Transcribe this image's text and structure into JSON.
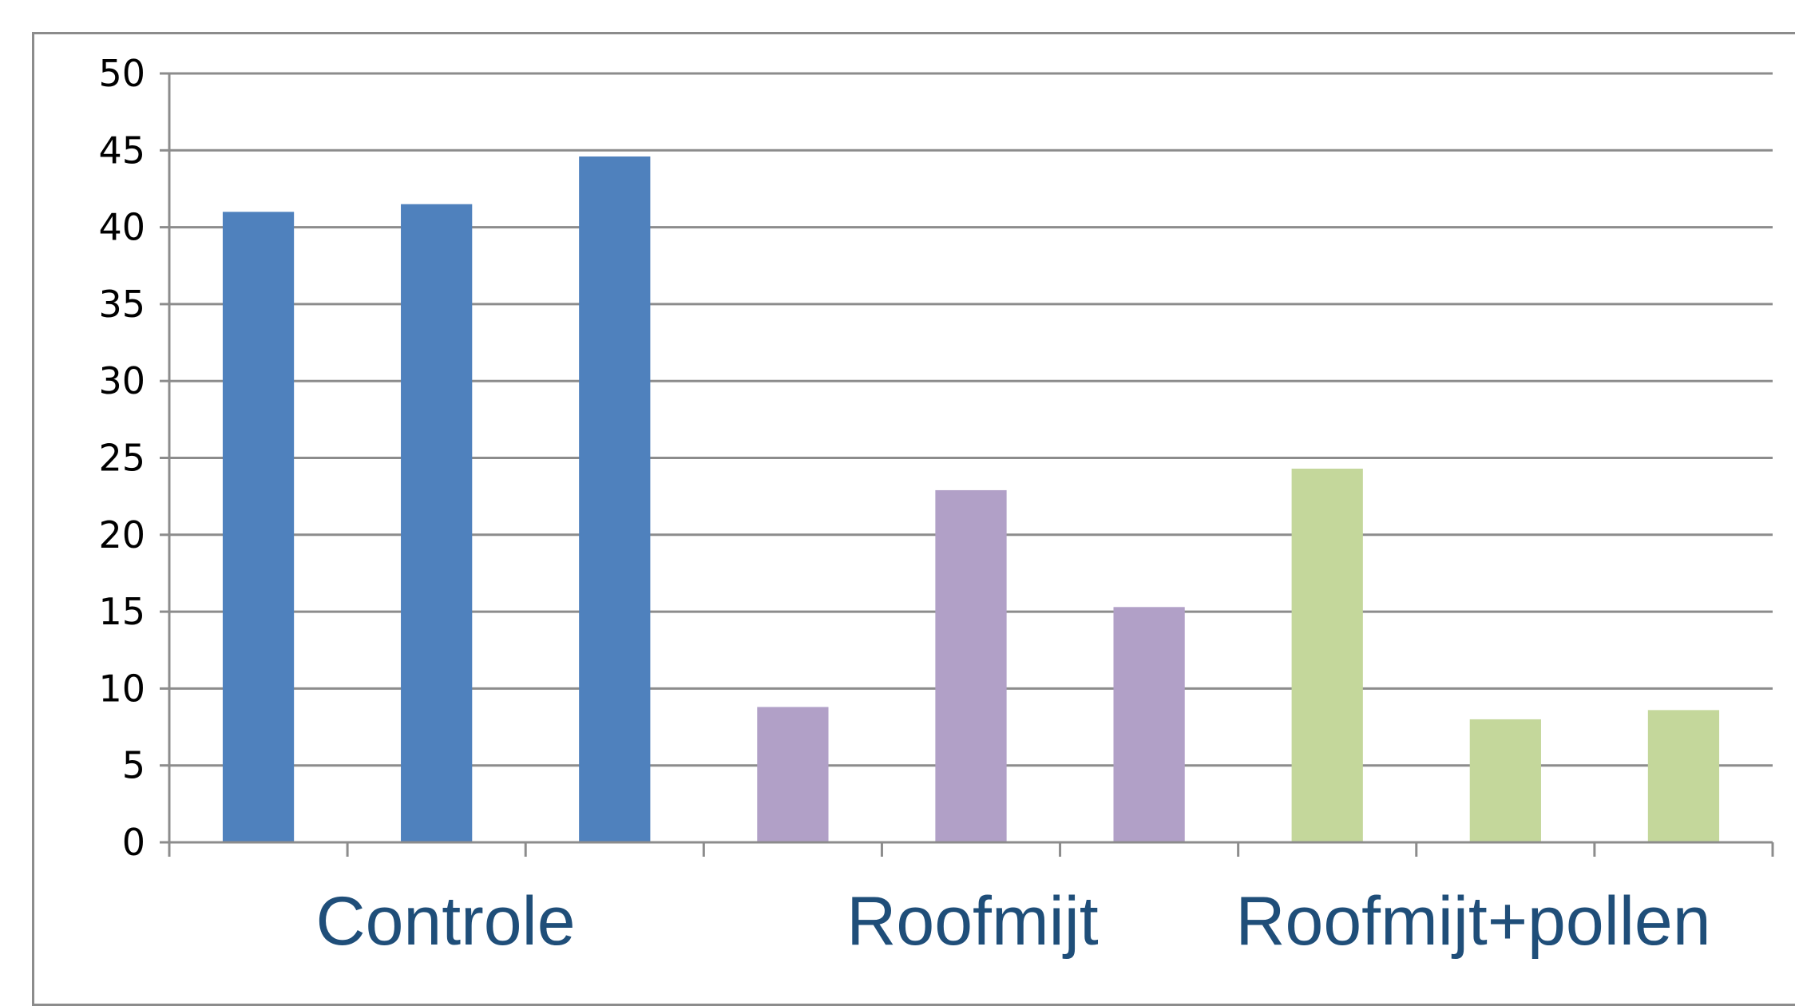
{
  "chart_data": {
    "type": "bar",
    "title": "",
    "xlabel": "",
    "ylabel": "",
    "ylim": [
      0,
      50
    ],
    "yticks": [
      0,
      5,
      10,
      15,
      20,
      25,
      30,
      35,
      40,
      45,
      50
    ],
    "grid": true,
    "legend": "none",
    "group_labels": [
      "Controle",
      "Roofmijt",
      "Roofmijt+pollen"
    ],
    "bars": [
      {
        "group": "Controle",
        "value": 41,
        "color": "#4f81bd"
      },
      {
        "group": "Controle",
        "value": 41.5,
        "color": "#4f81bd"
      },
      {
        "group": "Controle",
        "value": 44.6,
        "color": "#4f81bd"
      },
      {
        "group": "Roofmijt",
        "value": 8.8,
        "color": "#b1a0c7"
      },
      {
        "group": "Roofmijt",
        "value": 22.9,
        "color": "#b1a0c7"
      },
      {
        "group": "Roofmijt",
        "value": 15.3,
        "color": "#b1a0c7"
      },
      {
        "group": "Roofmijt+pollen",
        "value": 24.3,
        "color": "#c4d79b"
      },
      {
        "group": "Roofmijt+pollen",
        "value": 8.0,
        "color": "#c4d79b"
      },
      {
        "group": "Roofmijt+pollen",
        "value": 8.6,
        "color": "#c4d79b"
      }
    ]
  }
}
